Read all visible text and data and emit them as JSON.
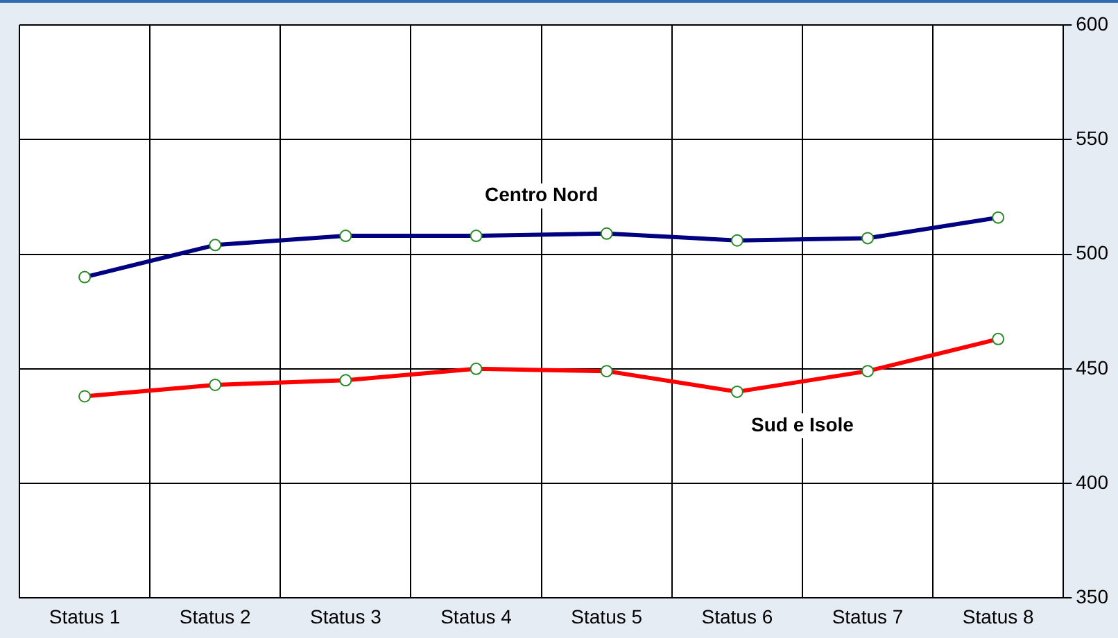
{
  "chart_data": {
    "type": "line",
    "categories": [
      "Status 1",
      "Status 2",
      "Status 3",
      "Status 4",
      "Status 5",
      "Status 6",
      "Status 7",
      "Status 8"
    ],
    "series": [
      {
        "name": "Centro Nord",
        "color": "#000080",
        "values": [
          490,
          504,
          508,
          508,
          509,
          506,
          507,
          516
        ]
      },
      {
        "name": "Sud e Isole",
        "color": "#ff0000",
        "values": [
          438,
          443,
          445,
          450,
          449,
          440,
          449,
          463
        ]
      }
    ],
    "ylim": [
      350,
      600
    ],
    "yticks": [
      350,
      400,
      450,
      500,
      550,
      600
    ],
    "grid": true,
    "legend": false,
    "marker": "circle",
    "line_style": "solid"
  }
}
